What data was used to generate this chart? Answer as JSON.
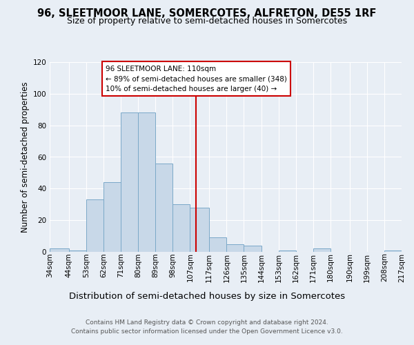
{
  "title": "96, SLEETMOOR LANE, SOMERCOTES, ALFRETON, DE55 1RF",
  "subtitle": "Size of property relative to semi-detached houses in Somercotes",
  "xlabel_bottom": "Distribution of semi-detached houses by size in Somercotes",
  "ylabel": "Number of semi-detached properties",
  "bin_labels": [
    "34sqm",
    "44sqm",
    "53sqm",
    "62sqm",
    "71sqm",
    "80sqm",
    "89sqm",
    "98sqm",
    "107sqm",
    "117sqm",
    "126sqm",
    "135sqm",
    "144sqm",
    "153sqm",
    "162sqm",
    "171sqm",
    "180sqm",
    "190sqm",
    "199sqm",
    "208sqm",
    "217sqm"
  ],
  "bin_edges": [
    34,
    44,
    53,
    62,
    71,
    80,
    89,
    98,
    107,
    117,
    126,
    135,
    144,
    153,
    162,
    171,
    180,
    190,
    199,
    208,
    217
  ],
  "bar_heights": [
    2,
    1,
    33,
    44,
    88,
    88,
    56,
    30,
    28,
    9,
    5,
    4,
    0,
    1,
    0,
    2,
    0,
    0,
    0,
    1
  ],
  "bar_color": "#c8d8e8",
  "bar_edge_color": "#7aa8c8",
  "property_line_x": 110,
  "property_line_color": "#cc0000",
  "annotation_line1": "96 SLEETMOOR LANE: 110sqm",
  "annotation_line2": "← 89% of semi-detached houses are smaller (348)",
  "annotation_line3": "10% of semi-detached houses are larger (40) →",
  "annotation_box_color": "#cc0000",
  "ylim": [
    0,
    120
  ],
  "yticks": [
    0,
    20,
    40,
    60,
    80,
    100,
    120
  ],
  "background_color": "#e8eef5",
  "axes_bg_color": "#e8eef5",
  "footer_line1": "Contains HM Land Registry data © Crown copyright and database right 2024.",
  "footer_line2": "Contains public sector information licensed under the Open Government Licence v3.0.",
  "title_fontsize": 10.5,
  "subtitle_fontsize": 9,
  "ylabel_fontsize": 8.5,
  "tick_fontsize": 7.5,
  "annotation_fontsize": 7.5,
  "xlabel_bottom_fontsize": 9.5,
  "footer_fontsize": 6.5
}
